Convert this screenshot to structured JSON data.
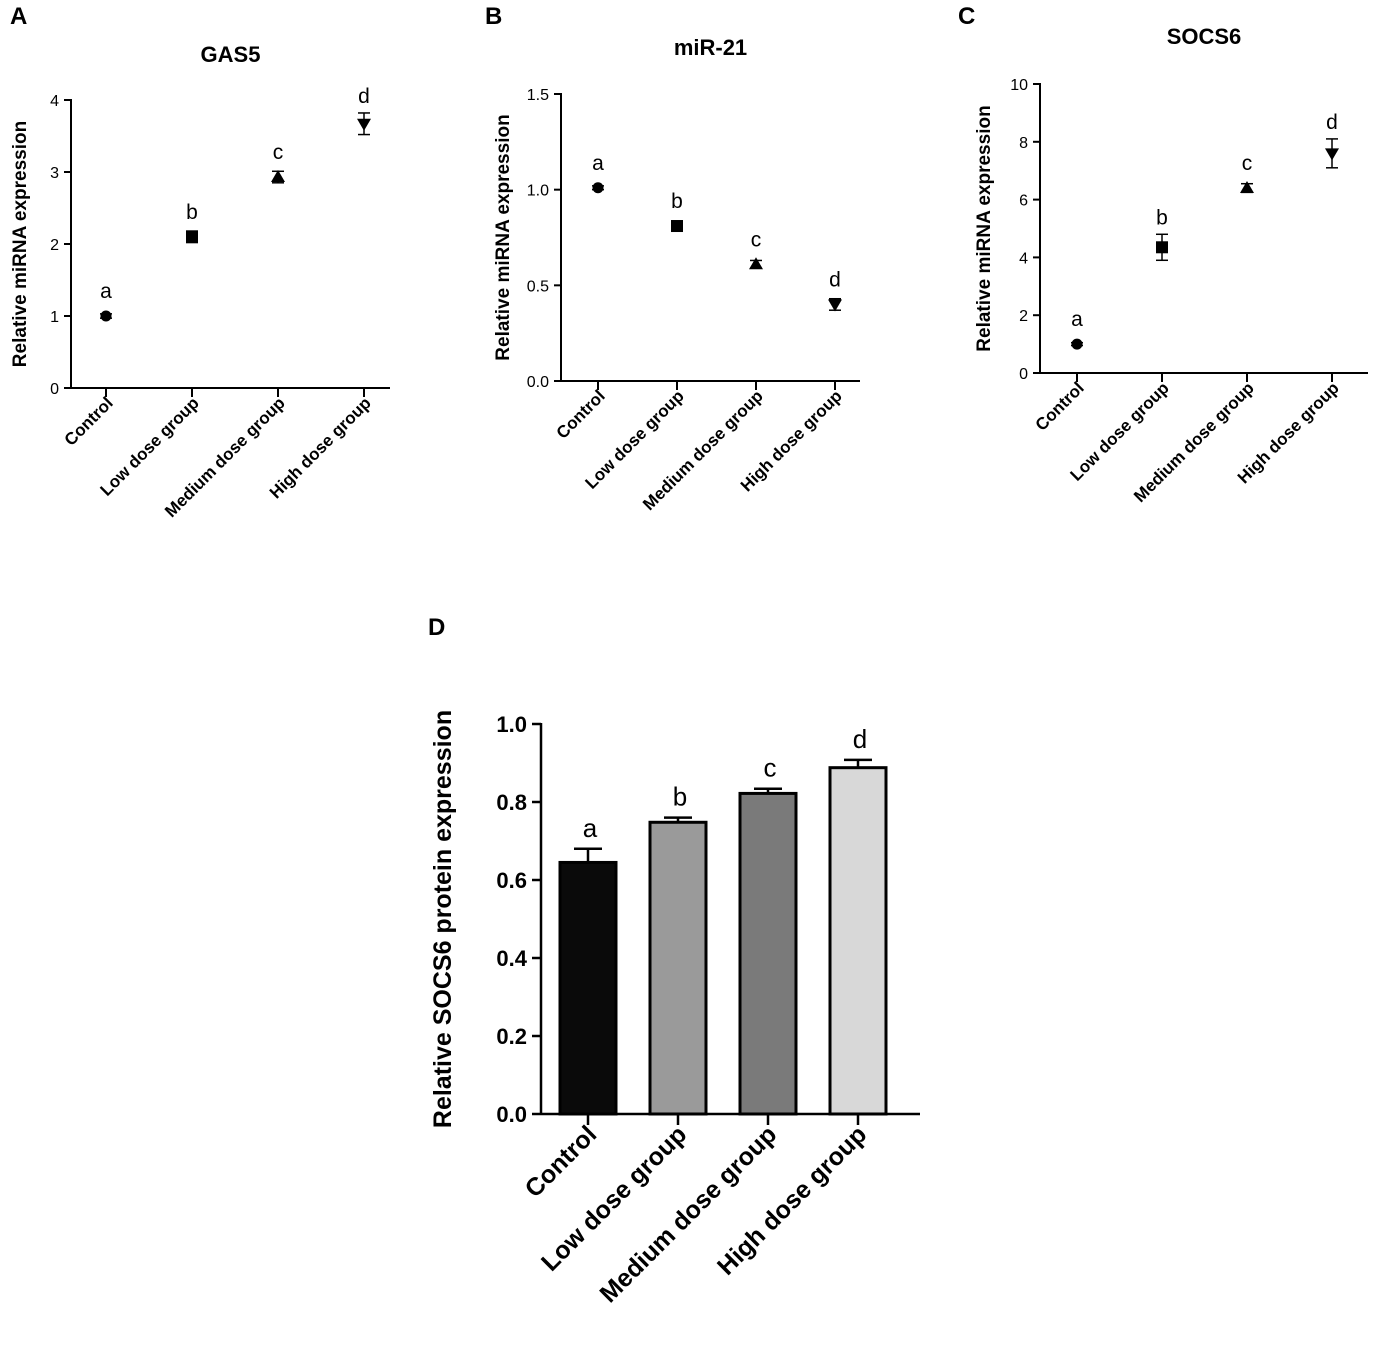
{
  "chart_data": [
    {
      "panel": "A",
      "type": "scatter",
      "title": "GAS5",
      "ylabel": "Relative miRNA expression",
      "xlabel": "",
      "categories": [
        "Control",
        "Low dose group",
        "Medium dose group",
        "High dose group"
      ],
      "values": [
        1.0,
        2.1,
        2.93,
        3.67
      ],
      "errors": [
        0.03,
        0.08,
        0.08,
        0.15
      ],
      "markers": [
        "circle",
        "square",
        "triangle-up",
        "triangle-down"
      ],
      "significance": [
        "a",
        "b",
        "c",
        "d"
      ],
      "ylim": [
        0,
        4
      ],
      "yticks": [
        0,
        1,
        2,
        3,
        4
      ],
      "ytick_labels": [
        "0",
        "1",
        "2",
        "3",
        "4"
      ],
      "grid": false
    },
    {
      "panel": "B",
      "type": "scatter",
      "title": "miR-21",
      "ylabel": "Relative miRNA expression",
      "xlabel": "",
      "categories": [
        "Control",
        "Low dose group",
        "Medium dose group",
        "High dose group"
      ],
      "values": [
        1.01,
        0.81,
        0.61,
        0.4
      ],
      "errors": [
        0.01,
        0.02,
        0.02,
        0.03
      ],
      "markers": [
        "circle",
        "square",
        "triangle-up",
        "triangle-down"
      ],
      "significance": [
        "a",
        "b",
        "c",
        "d"
      ],
      "ylim": [
        0,
        1.5
      ],
      "yticks": [
        0,
        0.5,
        1.0,
        1.5
      ],
      "ytick_labels": [
        "0.0",
        "0.5",
        "1.0",
        "1.5"
      ],
      "grid": false
    },
    {
      "panel": "C",
      "type": "scatter",
      "title": "SOCS6",
      "ylabel": "Relative miRNA expression",
      "xlabel": "",
      "categories": [
        "Control",
        "Low dose group",
        "Medium dose group",
        "High dose group"
      ],
      "values": [
        1.0,
        4.35,
        6.4,
        7.6
      ],
      "errors": [
        0.05,
        0.45,
        0.15,
        0.5
      ],
      "markers": [
        "circle",
        "square",
        "triangle-up",
        "triangle-down"
      ],
      "significance": [
        "a",
        "b",
        "c",
        "d"
      ],
      "ylim": [
        0,
        10
      ],
      "yticks": [
        0,
        2,
        4,
        6,
        8,
        10
      ],
      "ytick_labels": [
        "0",
        "2",
        "4",
        "6",
        "8",
        "10"
      ],
      "grid": false
    },
    {
      "panel": "D",
      "type": "bar",
      "title": "",
      "ylabel": "Relative SOCS6 protein expression",
      "xlabel": "",
      "categories": [
        "Control",
        "Low dose group",
        "Medium dose group",
        "High dose group"
      ],
      "values": [
        0.645,
        0.748,
        0.822,
        0.888
      ],
      "errors": [
        0.035,
        0.012,
        0.012,
        0.02
      ],
      "bar_colors": [
        "#0a0a0a",
        "#9a9a9a",
        "#7a7a7a",
        "#d8d8d8"
      ],
      "significance": [
        "a",
        "b",
        "c",
        "d"
      ],
      "ylim": [
        0,
        1.0
      ],
      "yticks": [
        0,
        0.2,
        0.4,
        0.6,
        0.8,
        1.0
      ],
      "ytick_labels": [
        "0.0",
        "0.2",
        "0.4",
        "0.6",
        "0.8",
        "1.0"
      ],
      "grid": false
    }
  ]
}
